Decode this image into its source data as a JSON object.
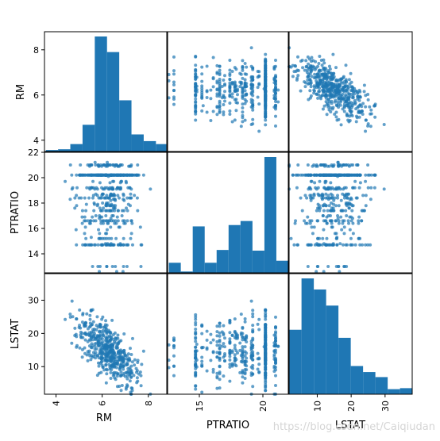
{
  "chart_data": {
    "type": "scatter",
    "matrix": true,
    "variables": [
      "RM",
      "PTRATIO",
      "LSTAT"
    ],
    "grid": false,
    "color": "#1f77b4",
    "ranges": {
      "RM": [
        3.5,
        8.8
      ],
      "PTRATIO": [
        12.5,
        22.0
      ],
      "LSTAT": [
        1.7,
        38.0
      ]
    },
    "ticks": {
      "RM": [
        4,
        6,
        8
      ],
      "PTRATIO": [
        14,
        16,
        18,
        20,
        22
      ],
      "LSTAT": [
        10,
        20,
        30
      ]
    },
    "x_ticks": {
      "RM": [
        4,
        6,
        8
      ],
      "PTRATIO": [
        15,
        20
      ],
      "LSTAT": [
        10,
        20,
        30
      ]
    },
    "histograms": {
      "RM": {
        "edges": [
          3.56,
          4.09,
          4.62,
          5.15,
          5.68,
          6.21,
          6.74,
          7.27,
          7.8,
          8.33,
          8.78
        ],
        "counts": [
          2,
          3,
          10,
          36,
          155,
          134,
          69,
          23,
          14,
          10
        ]
      },
      "PTRATIO": {
        "edges": [
          12.6,
          13.54,
          14.48,
          15.42,
          16.36,
          17.3,
          18.24,
          19.18,
          20.12,
          21.06,
          22.0
        ],
        "counts": [
          15,
          2,
          69,
          15,
          34,
          71,
          77,
          33,
          172,
          18
        ]
      },
      "LSTAT": {
        "edges": [
          1.73,
          5.36,
          8.99,
          12.62,
          16.25,
          19.88,
          23.51,
          27.14,
          30.77,
          34.4,
          38.03
        ],
        "counts": [
          64,
          115,
          104,
          88,
          56,
          28,
          22,
          17,
          5,
          6
        ]
      }
    }
  },
  "axis_labels": {
    "row_RM": "RM",
    "row_PTRATIO": "PTRATIO",
    "row_LSTAT": "LSTAT",
    "col_RM": "RM",
    "col_PTRATIO": "PTRATIO",
    "col_LSTAT": "LSTAT"
  },
  "watermark": "https://blog.csdn.net/Caiqiudan"
}
